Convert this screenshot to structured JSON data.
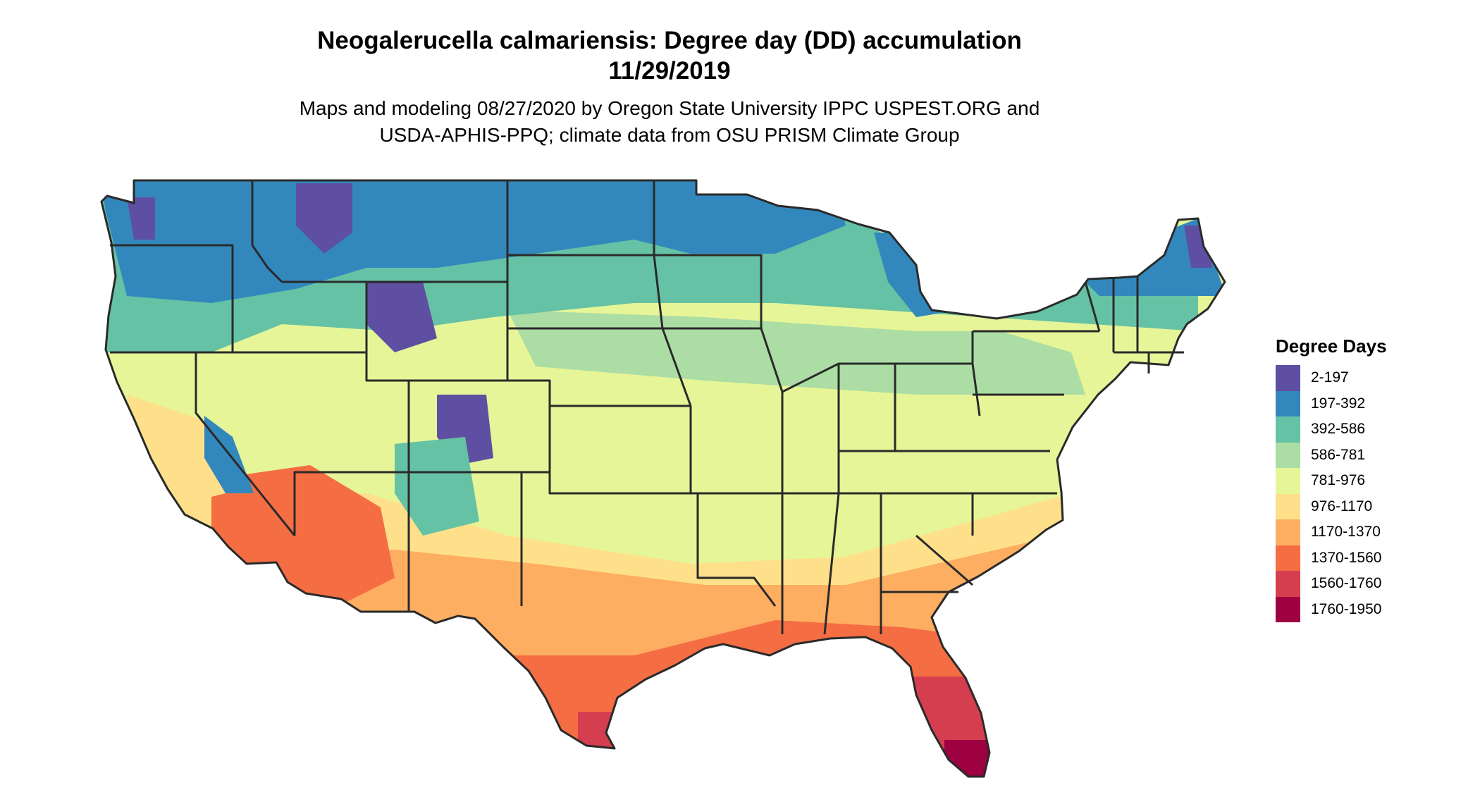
{
  "title": {
    "line1": "Neogalerucella calmariensis: Degree day (DD) accumulation",
    "line2": "11/29/2019"
  },
  "subtitle": {
    "line1": "Maps and modeling 08/27/2020 by Oregon State University IPPC USPEST.ORG and",
    "line2": "USDA-APHIS-PPQ; climate data from OSU PRISM Climate Group"
  },
  "legend": {
    "title": "Degree Days",
    "items": [
      {
        "label": "2-197",
        "color": "#5e4fa2"
      },
      {
        "label": "197-392",
        "color": "#3288bd"
      },
      {
        "label": "392-586",
        "color": "#66c2a5"
      },
      {
        "label": "586-781",
        "color": "#abdda4"
      },
      {
        "label": "781-976",
        "color": "#e6f598"
      },
      {
        "label": "976-1170",
        "color": "#fee08b"
      },
      {
        "label": "1170-1370",
        "color": "#fdae61"
      },
      {
        "label": "1370-1560",
        "color": "#f46d43"
      },
      {
        "label": "1560-1760",
        "color": "#d53e4f"
      },
      {
        "label": "1760-1950",
        "color": "#9e0142"
      }
    ]
  },
  "map": {
    "region": "Contiguous United States",
    "border_color": "#2a2a2a"
  }
}
